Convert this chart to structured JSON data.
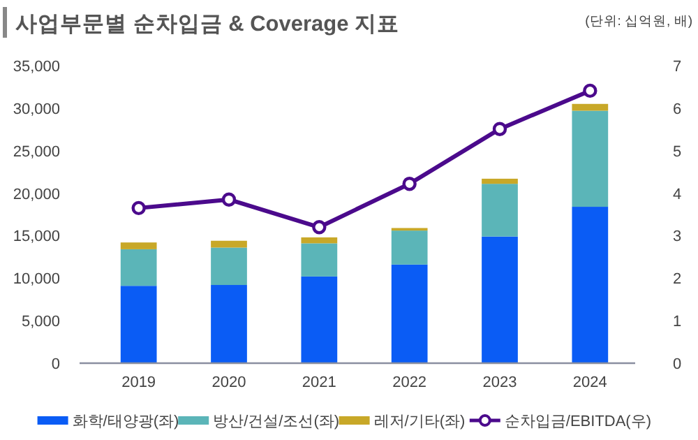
{
  "chart_data": {
    "type": "bar",
    "title": "사업부문별 순차입금 & Coverage 지표",
    "subtitle": "(단위: 십억원, 배)",
    "categories": [
      "2019",
      "2020",
      "2021",
      "2022",
      "2023",
      "2024"
    ],
    "stacked": true,
    "series": [
      {
        "name": "화학/태양광(좌)",
        "color": "#0a5cf5",
        "values": [
          9100,
          9200,
          10200,
          11600,
          14900,
          18400
        ]
      },
      {
        "name": "방산/건설/조선(좌)",
        "color": "#5bb5b8",
        "values": [
          4300,
          4400,
          3900,
          4000,
          6200,
          11300
        ]
      },
      {
        "name": "레저/기타(좌)",
        "color": "#c8a828",
        "values": [
          800,
          800,
          700,
          300,
          600,
          800
        ]
      },
      {
        "name": "순차입금/EBITDA(우)",
        "type": "line",
        "axis": "y2",
        "color": "#4b0a8c",
        "marker": "circle",
        "values": [
          3.65,
          3.85,
          3.2,
          4.22,
          5.51,
          6.41
        ]
      }
    ],
    "ylim": [
      0,
      35000
    ],
    "yticks": [
      {
        "value": 0,
        "label": "0"
      },
      {
        "value": 5000,
        "label": "5,000"
      },
      {
        "value": 10000,
        "label": "10,000"
      },
      {
        "value": 15000,
        "label": "15,000"
      },
      {
        "value": 20000,
        "label": "20,000"
      },
      {
        "value": 25000,
        "label": "25,000"
      },
      {
        "value": 30000,
        "label": "30,000"
      },
      {
        "value": 35000,
        "label": "35,000"
      }
    ],
    "y2lim": [
      0,
      7
    ],
    "y2ticks": [
      0,
      1,
      2,
      3,
      4,
      5,
      6,
      7
    ],
    "legend": "bottom",
    "grid": false
  }
}
